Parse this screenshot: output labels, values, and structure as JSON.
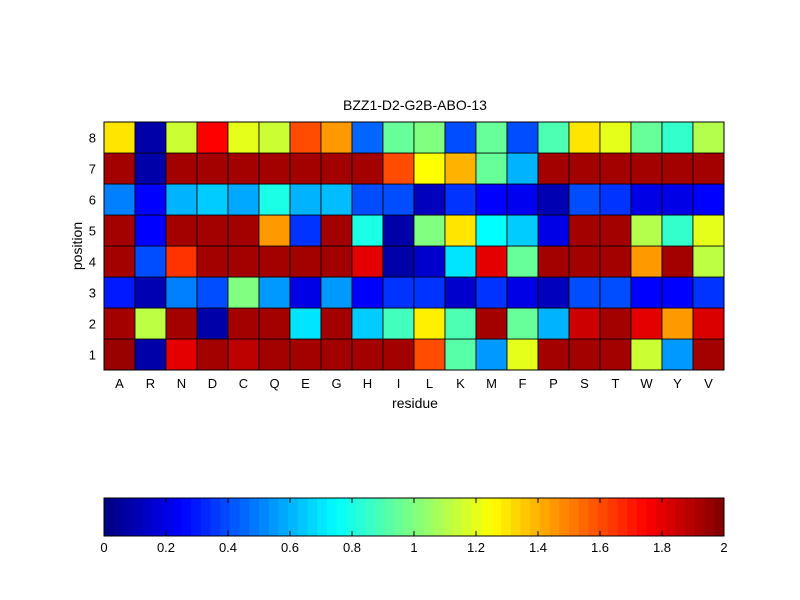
{
  "chart_data": [
    {
      "type": "heatmap",
      "title": "BZZ1-D2-G2B-ABO-13",
      "xlabel": "residue",
      "ylabel": "position",
      "x": [
        "A",
        "R",
        "N",
        "D",
        "C",
        "Q",
        "E",
        "G",
        "H",
        "I",
        "L",
        "K",
        "M",
        "F",
        "P",
        "S",
        "T",
        "W",
        "Y",
        "V"
      ],
      "y": [
        "1",
        "2",
        "3",
        "4",
        "5",
        "6",
        "7",
        "8"
      ],
      "zlim": [
        0,
        2
      ],
      "colormap": "jet",
      "grid": true,
      "values": [
        [
          1.95,
          0.08,
          1.8,
          1.93,
          1.88,
          1.93,
          1.93,
          1.93,
          1.93,
          1.93,
          1.6,
          0.92,
          0.55,
          1.2,
          1.93,
          1.93,
          1.93,
          1.15,
          0.55,
          1.93
        ],
        [
          1.93,
          1.12,
          1.93,
          0.08,
          1.93,
          1.93,
          0.7,
          1.93,
          0.65,
          0.88,
          1.28,
          0.9,
          1.93,
          0.95,
          0.6,
          1.85,
          1.93,
          1.8,
          1.45,
          1.82
        ],
        [
          0.3,
          0.1,
          0.5,
          0.4,
          1.0,
          0.55,
          0.2,
          0.55,
          0.25,
          0.35,
          0.35,
          0.15,
          0.35,
          0.2,
          0.12,
          0.4,
          0.4,
          0.25,
          0.25,
          0.35
        ],
        [
          1.93,
          0.4,
          1.65,
          1.93,
          1.93,
          1.93,
          1.93,
          1.93,
          1.8,
          0.08,
          0.15,
          0.7,
          1.8,
          0.95,
          1.93,
          1.93,
          1.93,
          1.45,
          1.93,
          1.12
        ],
        [
          1.93,
          0.25,
          1.93,
          1.93,
          1.93,
          1.45,
          0.35,
          1.93,
          0.8,
          0.08,
          1.0,
          1.3,
          0.75,
          0.65,
          0.2,
          1.93,
          1.93,
          1.1,
          0.85,
          1.2
        ],
        [
          0.5,
          0.25,
          0.6,
          0.65,
          0.58,
          0.8,
          0.6,
          0.62,
          0.4,
          0.4,
          0.12,
          0.35,
          0.25,
          0.22,
          0.1,
          0.4,
          0.35,
          0.2,
          0.2,
          0.25
        ],
        [
          1.93,
          0.08,
          1.93,
          1.93,
          1.93,
          1.93,
          1.93,
          1.93,
          1.93,
          1.6,
          1.25,
          1.4,
          0.95,
          0.6,
          1.93,
          1.93,
          1.93,
          1.93,
          1.93,
          1.93
        ],
        [
          1.3,
          0.08,
          1.15,
          1.75,
          1.2,
          1.15,
          1.6,
          1.45,
          0.45,
          0.95,
          1.0,
          0.4,
          0.95,
          0.4,
          0.9,
          1.3,
          1.2,
          0.95,
          0.85,
          1.1
        ]
      ]
    },
    {
      "type": "colorbar",
      "range": [
        0,
        2
      ],
      "ticks": [
        "0",
        "0.2",
        "0.4",
        "0.6",
        "0.8",
        "1",
        "1.2",
        "1.4",
        "1.6",
        "1.8",
        "2"
      ]
    }
  ]
}
